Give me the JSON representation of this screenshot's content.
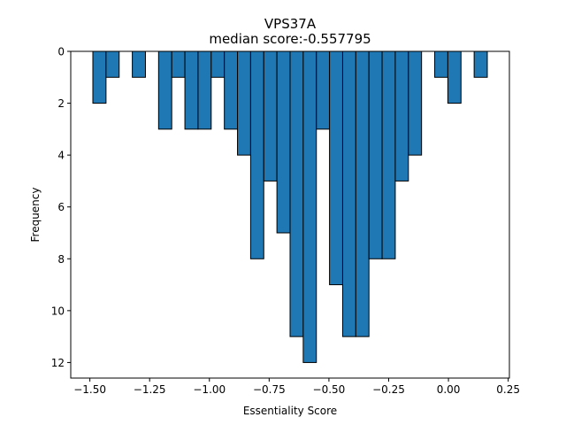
{
  "chart_data": {
    "type": "bar",
    "title": "VPS37A",
    "subtitle": "median score:-0.557795",
    "xlabel": "Essentiality Score",
    "ylabel": "Frequency",
    "xlim": [
      -1.58,
      0.255
    ],
    "ylim": [
      12.6,
      0
    ],
    "y_axis_inverted": true,
    "x_ticks": [
      -1.5,
      -1.25,
      -1.0,
      -0.75,
      -0.5,
      -0.25,
      0.0,
      0.25
    ],
    "x_tick_labels": [
      "−1.50",
      "−1.25",
      "−1.00",
      "−0.75",
      "−0.50",
      "−0.25",
      "0.00",
      "0.25"
    ],
    "y_ticks": [
      0,
      2,
      4,
      6,
      8,
      10,
      12
    ],
    "y_tick_labels": [
      "0",
      "2",
      "4",
      "6",
      "8",
      "10",
      "12"
    ],
    "bin_width": 0.055,
    "bins": [
      {
        "x": -1.46,
        "count": 2
      },
      {
        "x": -1.405,
        "count": 1
      },
      {
        "x": -1.295,
        "count": 1
      },
      {
        "x": -1.185,
        "count": 3
      },
      {
        "x": -1.13,
        "count": 1
      },
      {
        "x": -1.075,
        "count": 3
      },
      {
        "x": -1.02,
        "count": 3
      },
      {
        "x": -0.965,
        "count": 1
      },
      {
        "x": -0.91,
        "count": 3
      },
      {
        "x": -0.855,
        "count": 4
      },
      {
        "x": -0.8,
        "count": 8
      },
      {
        "x": -0.745,
        "count": 5
      },
      {
        "x": -0.69,
        "count": 7
      },
      {
        "x": -0.635,
        "count": 11
      },
      {
        "x": -0.58,
        "count": 12
      },
      {
        "x": -0.525,
        "count": 3
      },
      {
        "x": -0.47,
        "count": 9
      },
      {
        "x": -0.415,
        "count": 11
      },
      {
        "x": -0.36,
        "count": 11
      },
      {
        "x": -0.305,
        "count": 8
      },
      {
        "x": -0.25,
        "count": 8
      },
      {
        "x": -0.195,
        "count": 5
      },
      {
        "x": -0.14,
        "count": 4
      },
      {
        "x": -0.03,
        "count": 1
      },
      {
        "x": 0.025,
        "count": 2
      },
      {
        "x": 0.135,
        "count": 1
      }
    ],
    "bar_color": "#1f77b4",
    "edge_color": "#000000",
    "grid": false,
    "legend": "none"
  }
}
